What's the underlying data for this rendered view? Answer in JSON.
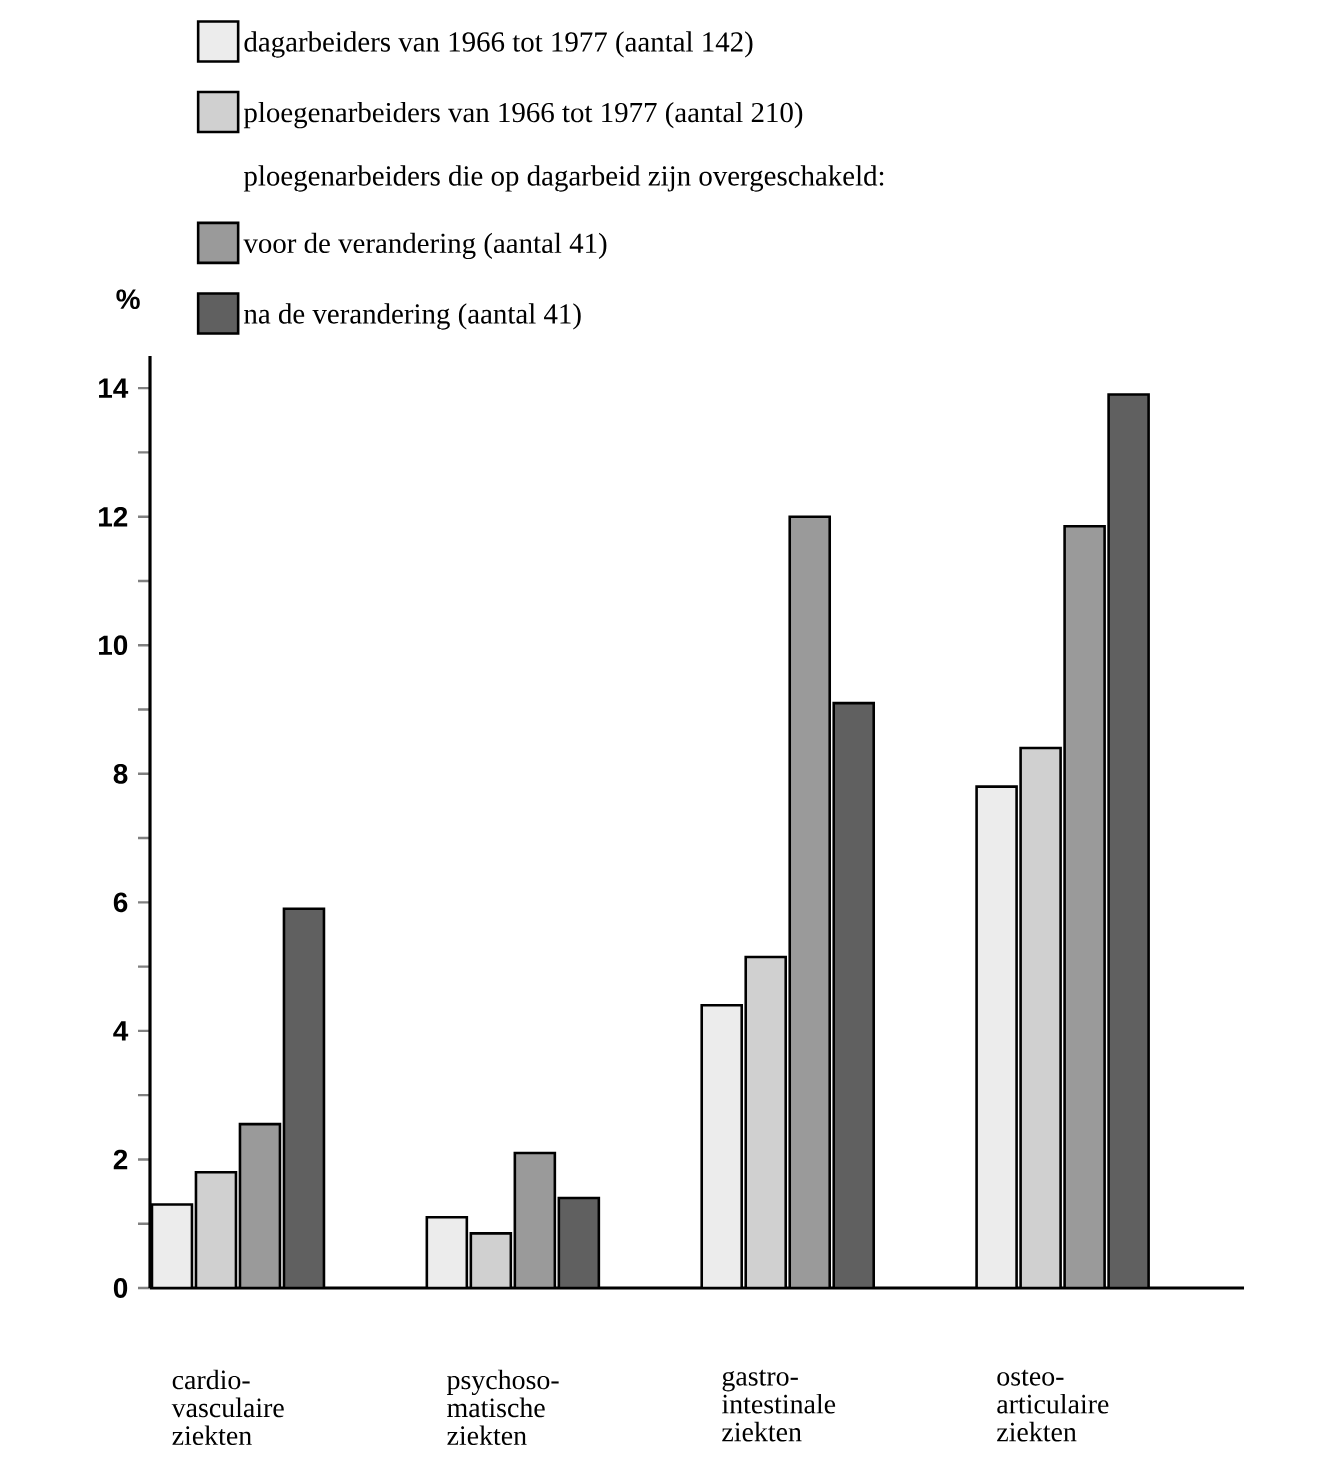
{
  "chart_data": {
    "type": "bar",
    "ylabel": "%",
    "legend_title": "ploegenarbeiders die op dagarbeid zijn overgeschakeld:",
    "categories": [
      "cardio-vasculaire ziekten",
      "psychoso-matische ziekten",
      "gastro-intestinale ziekten",
      "osteo-articulaire ziekten"
    ],
    "series": [
      {
        "name": "dagarbeiders van 1966 tot 1977 (aantal 142)",
        "color": "#ececec",
        "values": [
          1.3,
          1.1,
          4.4,
          7.8
        ]
      },
      {
        "name": "ploegenarbeiders van 1966 tot 1977 (aantal 210)",
        "color": "#d0d0d0",
        "values": [
          1.8,
          0.85,
          5.15,
          8.4
        ]
      },
      {
        "name": "voor de verandering (aantal 41)",
        "color": "#9a9a9a",
        "values": [
          2.55,
          2.1,
          12.0,
          11.85
        ]
      },
      {
        "name": "na de verandering (aantal 41)",
        "color": "#606060",
        "values": [
          5.9,
          1.4,
          9.1,
          13.9
        ]
      }
    ],
    "ylim": [
      0,
      14.5
    ],
    "yticks": [
      0,
      2,
      4,
      6,
      8,
      10,
      12,
      14
    ],
    "grid": false,
    "legend": "top"
  }
}
